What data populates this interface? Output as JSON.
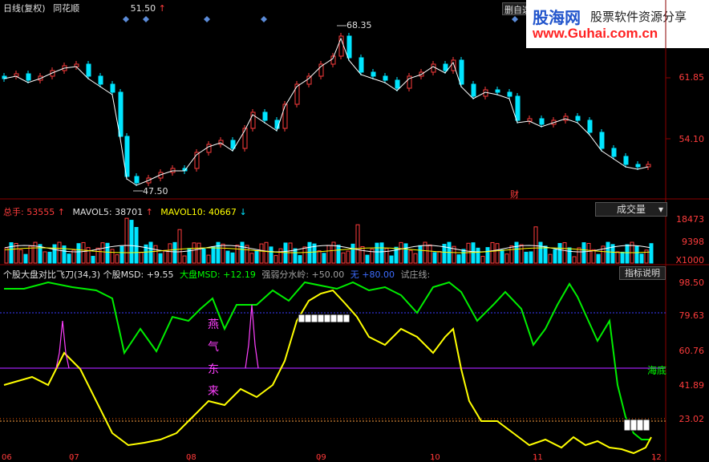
{
  "header": {
    "title": "日线(复权)",
    "vendor": "同花顺",
    "price_label": "51.50",
    "button_delete": "删自选"
  },
  "logo": {
    "brand": "股海网",
    "slogan": "股票软件资源分享",
    "url": "www.Guhai.com.cn"
  },
  "main_chart": {
    "high_label": "68.35",
    "low_label": "47.50",
    "fin_marker": "财",
    "y_ticks": [
      "61.85",
      "54.10"
    ]
  },
  "volume": {
    "total_label": "总手:",
    "total_value": "53555",
    "mavol5_label": "MAVOL5:",
    "mavol5_value": "38701",
    "mavol10_label": "MAVOL10:",
    "mavol10_value": "40667",
    "dropdown_label": "成交量",
    "y_ticks": [
      "18473",
      "9398",
      "X1000"
    ]
  },
  "indicator": {
    "name": "个股大盘对比飞刀(34,3)",
    "stock_msd_label": "个股MSD:",
    "stock_msd_value": "+9.55",
    "market_msd_label": "大盘MSD:",
    "market_msd_value": "+12.19",
    "divider_label": "强弱分水岭:",
    "divider_value": "+50.00",
    "none_label": "无",
    "none_value": "+80.00",
    "test_label": "试庄线:",
    "help_button": "指标说明",
    "vertical_text": [
      "燕",
      "气",
      "东",
      "来"
    ],
    "sea_bottom": "海底",
    "y_ticks": [
      "98.50",
      "79.63",
      "60.76",
      "41.89",
      "23.02"
    ]
  },
  "colors": {
    "background": "#000000",
    "up": "#ff3c3c",
    "down": "#00e5ff",
    "ma": "#ffffff",
    "stock_line": "#ffff00",
    "market_line": "#00ff00",
    "water_line": "#a020f0"
  },
  "x_ticks": [
    "06",
    "07",
    "08",
    "09",
    "10",
    "11",
    "12"
  ]
}
